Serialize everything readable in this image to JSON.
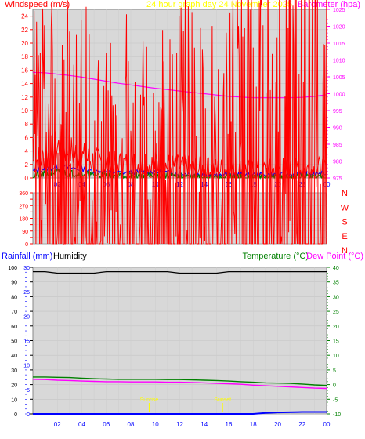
{
  "colors": {
    "wind": "#ff0000",
    "gust": "#ff0000",
    "wind_avg": "#0000ff",
    "wind_low": "#008000",
    "barometer": "#ff00ff",
    "direction": "#ff0000",
    "rainfall": "#0000ff",
    "humidity": "#000000",
    "temperature": "#008000",
    "dewpoint": "#ff00ff",
    "title": "#ffff00",
    "plot_bg": "#d8d8d8"
  },
  "chart_data": [
    {
      "type": "line",
      "title": "24 hour graph day   24 November 2025",
      "ylabel": "Windspeed (m/s)",
      "y2label": "Barometer (hpa)",
      "xlabel": "",
      "x_ticks": [
        "02",
        "04",
        "06",
        "08",
        "10",
        "12",
        "14",
        "16",
        "18",
        "20",
        "22",
        "00"
      ],
      "x_range": [
        0,
        24
      ],
      "ylim": [
        0,
        25
      ],
      "y_ticks": [
        0,
        2,
        4,
        6,
        8,
        10,
        12,
        14,
        16,
        18,
        20,
        22,
        24
      ],
      "y2lim": [
        975,
        1025
      ],
      "y2_ticks": [
        975,
        980,
        985,
        990,
        995,
        1000,
        1005,
        1010,
        1015,
        1020,
        1025
      ],
      "grid": true,
      "series": [
        {
          "kind": "gust",
          "axis": "left",
          "x": [
            0,
            1,
            2,
            2.5,
            3,
            4,
            5,
            6,
            7,
            8,
            9,
            10,
            11,
            12,
            13,
            14,
            15,
            16,
            17,
            18,
            19,
            20,
            21,
            22,
            23,
            24
          ],
          "values": [
            2.5,
            3.0,
            4.5,
            5.0,
            4.0,
            3.0,
            2.5,
            2.0,
            2.0,
            2.0,
            2.2,
            2.0,
            1.8,
            1.6,
            1.5,
            1.3,
            1.3,
            1.3,
            1.2,
            1.2,
            1.2,
            1.2,
            1.2,
            1.3,
            1.3,
            1.5
          ]
        },
        {
          "kind": "wind_avg",
          "axis": "left",
          "x": [
            0,
            1,
            2,
            3,
            4,
            5,
            6,
            7,
            8,
            9,
            10,
            11,
            12,
            13,
            14,
            15,
            16,
            17,
            18,
            19,
            20,
            21,
            22,
            23,
            24
          ],
          "values": [
            1.0,
            1.4,
            1.6,
            1.5,
            1.3,
            1.0,
            0.9,
            0.8,
            0.8,
            0.9,
            0.9,
            0.8,
            0.7,
            0.6,
            0.5,
            0.5,
            0.5,
            0.5,
            0.5,
            0.5,
            0.5,
            0.5,
            0.6,
            0.6,
            0.7
          ]
        },
        {
          "kind": "wind_low",
          "axis": "left",
          "x": [
            0,
            1,
            2,
            3,
            4,
            5,
            6,
            7,
            8,
            9,
            10,
            11,
            12,
            13,
            14,
            15,
            16,
            17,
            18,
            19,
            20,
            21,
            22,
            23,
            24
          ],
          "values": [
            0.3,
            0.6,
            0.8,
            0.7,
            0.6,
            0.4,
            0.4,
            0.3,
            0.3,
            0.3,
            0.3,
            0.3,
            0.2,
            0.2,
            0.1,
            0.1,
            0.1,
            0.1,
            0.1,
            0.1,
            0.1,
            0.1,
            0.2,
            0.2,
            0.2
          ]
        },
        {
          "kind": "barometer",
          "axis": "right",
          "x": [
            0,
            1,
            2,
            3,
            4,
            5,
            6,
            7,
            8,
            9,
            10,
            11,
            12,
            13,
            14,
            15,
            16,
            17,
            18,
            19,
            20,
            21,
            22,
            23,
            24
          ],
          "values": [
            1006.3,
            1006.2,
            1005.8,
            1005.4,
            1004.9,
            1004.3,
            1003.7,
            1003.1,
            1002.6,
            1002.1,
            1001.6,
            1001.2,
            1000.8,
            1000.4,
            1000.0,
            999.6,
            999.2,
            999.0,
            998.8,
            998.8,
            998.8,
            998.8,
            998.9,
            999.2,
            999.7
          ]
        }
      ]
    },
    {
      "type": "line",
      "title": "",
      "ylabel": "",
      "x_range": [
        0,
        24
      ],
      "ylim": [
        0,
        360
      ],
      "y_ticks": [
        0,
        45,
        90,
        135,
        180,
        225,
        270,
        315,
        360
      ],
      "y_tick_labels": [
        "0",
        "",
        "90",
        "",
        "180",
        "",
        "270",
        "",
        "360"
      ],
      "compass": [
        "N",
        "W",
        "S",
        "E",
        "N"
      ],
      "grid": true,
      "series": [
        {
          "kind": "direction",
          "x": [
            0,
            1,
            2,
            3,
            4,
            5,
            6,
            7,
            8,
            9,
            10,
            11,
            12,
            13,
            14,
            15,
            16,
            17,
            18,
            19,
            20,
            21,
            22,
            23,
            24
          ],
          "values": [
            180,
            190,
            195,
            190,
            185,
            180,
            185,
            180,
            175,
            180,
            180,
            180,
            185,
            190,
            180,
            190,
            200,
            210,
            225,
            240,
            250,
            262,
            270,
            272,
            275
          ]
        }
      ]
    },
    {
      "type": "line",
      "title": "",
      "ylabel": "Rainfall (mm)",
      "ylabel2": "Humidity",
      "y2label": "Temperature (°C)",
      "y2label2": "Dew Point (°C)",
      "x_ticks": [
        "02",
        "04",
        "06",
        "08",
        "10",
        "12",
        "14",
        "16",
        "18",
        "20",
        "22",
        "00"
      ],
      "x_range": [
        0,
        24
      ],
      "ylim": [
        0,
        100
      ],
      "y_ticks": [
        0,
        10,
        20,
        30,
        40,
        50,
        60,
        70,
        80,
        90,
        100
      ],
      "y_rain_ticks": [
        0,
        5,
        10,
        15,
        20,
        25,
        30
      ],
      "y2lim": [
        -10,
        40
      ],
      "y2_ticks": [
        -10,
        -5,
        0,
        5,
        10,
        15,
        20,
        25,
        30,
        35,
        40
      ],
      "grid": true,
      "annotations": [
        "Sunrise",
        "Sunset"
      ],
      "annotation_x": [
        9.5,
        15.5
      ],
      "series": [
        {
          "kind": "humidity",
          "axis": "left",
          "x": [
            0,
            1,
            2,
            3,
            4,
            5,
            6,
            7,
            8,
            9,
            10,
            11,
            12,
            13,
            14,
            15,
            16,
            17,
            18,
            19,
            20,
            21,
            22,
            23,
            24
          ],
          "values": [
            97,
            97,
            96,
            96,
            96,
            96,
            97,
            97,
            97,
            97,
            97,
            97,
            96,
            96,
            96,
            96,
            97,
            97,
            97,
            97,
            97,
            97,
            97,
            97,
            97
          ]
        },
        {
          "kind": "temperature",
          "axis": "right",
          "x": [
            0,
            1,
            2,
            3,
            4,
            5,
            6,
            7,
            8,
            9,
            10,
            11,
            12,
            13,
            14,
            15,
            16,
            17,
            18,
            19,
            20,
            21,
            22,
            23,
            24
          ],
          "values": [
            2.6,
            2.6,
            2.5,
            2.4,
            2.2,
            2.0,
            1.9,
            1.8,
            1.8,
            1.8,
            1.8,
            1.7,
            1.7,
            1.6,
            1.5,
            1.4,
            1.2,
            1.0,
            0.8,
            0.6,
            0.5,
            0.4,
            0.2,
            -0.1,
            -0.3
          ]
        },
        {
          "kind": "dewpoint",
          "axis": "right",
          "x": [
            0,
            1,
            2,
            3,
            4,
            5,
            6,
            7,
            8,
            9,
            10,
            11,
            12,
            13,
            14,
            15,
            16,
            17,
            18,
            19,
            20,
            21,
            22,
            23,
            24
          ],
          "values": [
            1.8,
            1.7,
            1.5,
            1.4,
            1.2,
            1.1,
            1.0,
            1.0,
            0.9,
            0.9,
            0.9,
            0.8,
            0.8,
            0.7,
            0.6,
            0.4,
            0.3,
            0.1,
            -0.2,
            -0.4,
            -0.6,
            -0.8,
            -1.0,
            -1.2,
            -1.3
          ]
        },
        {
          "kind": "rainfall",
          "axis": "rain",
          "x": [
            0,
            2,
            4,
            6,
            8,
            10,
            12,
            14,
            16,
            18,
            19,
            20,
            22,
            23,
            24
          ],
          "values": [
            0,
            0,
            0,
            0,
            0,
            0,
            0,
            0,
            0,
            0,
            0.2,
            0.3,
            0.4,
            0.4,
            0.4
          ]
        }
      ]
    }
  ]
}
